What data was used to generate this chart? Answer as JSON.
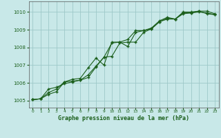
{
  "title": "Graphe pression niveau de la mer (hPa)",
  "bg_color": "#c8e8e8",
  "line_color": "#1a5e1a",
  "grid_color": "#9dc8c8",
  "xlim": [
    -0.5,
    23.5
  ],
  "ylim": [
    1004.6,
    1010.6
  ],
  "yticks": [
    1005,
    1006,
    1007,
    1008,
    1009,
    1010
  ],
  "xticks": [
    0,
    1,
    2,
    3,
    4,
    5,
    6,
    7,
    8,
    9,
    10,
    11,
    12,
    13,
    14,
    15,
    16,
    17,
    18,
    19,
    20,
    21,
    22,
    23
  ],
  "line1_x": [
    0,
    1,
    2,
    3,
    4,
    5,
    6,
    7,
    8,
    9,
    10,
    11,
    12,
    13,
    14,
    15,
    16,
    17,
    18,
    19,
    20,
    21,
    22,
    23
  ],
  "line1_y": [
    1005.05,
    1005.1,
    1005.35,
    1005.5,
    1006.05,
    1006.1,
    1006.15,
    1006.45,
    1006.95,
    1007.45,
    1008.25,
    1008.3,
    1008.05,
    1008.85,
    1008.95,
    1009.05,
    1009.45,
    1009.65,
    1009.6,
    1009.95,
    1009.95,
    1010.05,
    1009.9,
    1009.85
  ],
  "line2_x": [
    0,
    1,
    2,
    3,
    4,
    5,
    6,
    7,
    8,
    9,
    10,
    11,
    12,
    13,
    14,
    15,
    16,
    17,
    18,
    19,
    20,
    21,
    22,
    23
  ],
  "line2_y": [
    1005.05,
    1005.1,
    1005.45,
    1005.65,
    1006.05,
    1006.2,
    1006.25,
    1006.85,
    1007.4,
    1007.0,
    1008.3,
    1008.3,
    1008.45,
    1008.95,
    1008.95,
    1009.1,
    1009.5,
    1009.7,
    1009.6,
    1010.0,
    1010.0,
    1010.05,
    1010.05,
    1009.9
  ],
  "line3_x": [
    0,
    1,
    2,
    3,
    4,
    5,
    6,
    7,
    8,
    9,
    10,
    11,
    12,
    13,
    14,
    15,
    16,
    17,
    18,
    19,
    20,
    21,
    22,
    23
  ],
  "line3_y": [
    1005.05,
    1005.1,
    1005.65,
    1005.75,
    1005.95,
    1006.05,
    1006.15,
    1006.3,
    1006.9,
    1007.45,
    1007.5,
    1008.25,
    1008.3,
    1008.3,
    1008.85,
    1009.05,
    1009.45,
    1009.6,
    1009.6,
    1009.9,
    1009.95,
    1010.0,
    1009.95,
    1009.85
  ]
}
